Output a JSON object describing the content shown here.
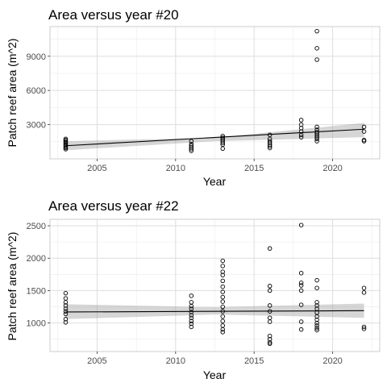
{
  "chart_data": [
    {
      "type": "scatter",
      "title": "Area versus year #20",
      "xlabel": "Year",
      "ylabel": "Patch reef area (m^2)",
      "xlim": [
        2002.0,
        2023.0
      ],
      "ylim": [
        0,
        11600
      ],
      "xticks": [
        2005,
        2010,
        2015,
        2020
      ],
      "yticks": [
        3000,
        6000,
        9000
      ],
      "grid": true,
      "legend": "none",
      "points": [
        {
          "x": 2003,
          "y": 1750
        },
        {
          "x": 2003,
          "y": 1650
        },
        {
          "x": 2003,
          "y": 1550
        },
        {
          "x": 2003,
          "y": 1450
        },
        {
          "x": 2003,
          "y": 1350
        },
        {
          "x": 2003,
          "y": 1250
        },
        {
          "x": 2003,
          "y": 1150
        },
        {
          "x": 2003,
          "y": 1050
        },
        {
          "x": 2003,
          "y": 950
        },
        {
          "x": 2003,
          "y": 850
        },
        {
          "x": 2011,
          "y": 1550
        },
        {
          "x": 2011,
          "y": 1300
        },
        {
          "x": 2011,
          "y": 1150
        },
        {
          "x": 2011,
          "y": 1000
        },
        {
          "x": 2011,
          "y": 850
        },
        {
          "x": 2011,
          "y": 700
        },
        {
          "x": 2013,
          "y": 2000
        },
        {
          "x": 2013,
          "y": 1850
        },
        {
          "x": 2013,
          "y": 1700
        },
        {
          "x": 2013,
          "y": 1550
        },
        {
          "x": 2013,
          "y": 1400
        },
        {
          "x": 2013,
          "y": 1250
        },
        {
          "x": 2013,
          "y": 900
        },
        {
          "x": 2016,
          "y": 2100
        },
        {
          "x": 2016,
          "y": 1750
        },
        {
          "x": 2016,
          "y": 1550
        },
        {
          "x": 2016,
          "y": 1400
        },
        {
          "x": 2016,
          "y": 1250
        },
        {
          "x": 2016,
          "y": 1100
        },
        {
          "x": 2016,
          "y": 950
        },
        {
          "x": 2018,
          "y": 3400
        },
        {
          "x": 2018,
          "y": 3000
        },
        {
          "x": 2018,
          "y": 2700
        },
        {
          "x": 2018,
          "y": 2400
        },
        {
          "x": 2018,
          "y": 2100
        },
        {
          "x": 2018,
          "y": 1900
        },
        {
          "x": 2019,
          "y": 11200
        },
        {
          "x": 2019,
          "y": 9700
        },
        {
          "x": 2019,
          "y": 8700
        },
        {
          "x": 2019,
          "y": 2800
        },
        {
          "x": 2019,
          "y": 2550
        },
        {
          "x": 2019,
          "y": 2350
        },
        {
          "x": 2019,
          "y": 2200
        },
        {
          "x": 2019,
          "y": 2050
        },
        {
          "x": 2019,
          "y": 1900
        },
        {
          "x": 2019,
          "y": 1750
        },
        {
          "x": 2019,
          "y": 1550
        },
        {
          "x": 2022,
          "y": 2800
        },
        {
          "x": 2022,
          "y": 2400
        },
        {
          "x": 2022,
          "y": 1650
        },
        {
          "x": 2022,
          "y": 1550
        }
      ],
      "trend": {
        "x": [
          2003,
          2022
        ],
        "y": [
          1150,
          2600
        ]
      },
      "confidence_band": {
        "x": [
          2003,
          2012.5,
          2022
        ],
        "lower": [
          750,
          1550,
          1900
        ],
        "upper": [
          1550,
          1850,
          3150
        ]
      }
    },
    {
      "type": "scatter",
      "title": "Area versus year #22",
      "xlabel": "Year",
      "ylabel": "Patch reef area (m^2)",
      "xlim": [
        2002.0,
        2023.0
      ],
      "ylim": [
        560,
        2600
      ],
      "xticks": [
        2005,
        2010,
        2015,
        2020
      ],
      "yticks": [
        1000,
        1500,
        2000,
        2500
      ],
      "grid": true,
      "legend": "none",
      "points": [
        {
          "x": 2003,
          "y": 1460
        },
        {
          "x": 2003,
          "y": 1380
        },
        {
          "x": 2003,
          "y": 1320
        },
        {
          "x": 2003,
          "y": 1270
        },
        {
          "x": 2003,
          "y": 1220
        },
        {
          "x": 2003,
          "y": 1180
        },
        {
          "x": 2003,
          "y": 1140
        },
        {
          "x": 2003,
          "y": 1060
        },
        {
          "x": 2003,
          "y": 1010
        },
        {
          "x": 2011,
          "y": 1420
        },
        {
          "x": 2011,
          "y": 1320
        },
        {
          "x": 2011,
          "y": 1260
        },
        {
          "x": 2011,
          "y": 1220
        },
        {
          "x": 2011,
          "y": 1170
        },
        {
          "x": 2011,
          "y": 1120
        },
        {
          "x": 2011,
          "y": 1080
        },
        {
          "x": 2011,
          "y": 1030
        },
        {
          "x": 2011,
          "y": 990
        },
        {
          "x": 2011,
          "y": 940
        },
        {
          "x": 2013,
          "y": 1960
        },
        {
          "x": 2013,
          "y": 1880
        },
        {
          "x": 2013,
          "y": 1790
        },
        {
          "x": 2013,
          "y": 1740
        },
        {
          "x": 2013,
          "y": 1650
        },
        {
          "x": 2013,
          "y": 1560
        },
        {
          "x": 2013,
          "y": 1480
        },
        {
          "x": 2013,
          "y": 1400
        },
        {
          "x": 2013,
          "y": 1330
        },
        {
          "x": 2013,
          "y": 1250
        },
        {
          "x": 2013,
          "y": 1180
        },
        {
          "x": 2013,
          "y": 1100
        },
        {
          "x": 2013,
          "y": 1030
        },
        {
          "x": 2013,
          "y": 960
        },
        {
          "x": 2013,
          "y": 900
        },
        {
          "x": 2013,
          "y": 860
        },
        {
          "x": 2016,
          "y": 2150
        },
        {
          "x": 2016,
          "y": 1570
        },
        {
          "x": 2016,
          "y": 1500
        },
        {
          "x": 2016,
          "y": 1270
        },
        {
          "x": 2016,
          "y": 1180
        },
        {
          "x": 2016,
          "y": 1080
        },
        {
          "x": 2016,
          "y": 1020
        },
        {
          "x": 2016,
          "y": 800
        },
        {
          "x": 2016,
          "y": 750
        },
        {
          "x": 2016,
          "y": 700
        },
        {
          "x": 2016,
          "y": 680
        },
        {
          "x": 2018,
          "y": 2510
        },
        {
          "x": 2018,
          "y": 1770
        },
        {
          "x": 2018,
          "y": 1620
        },
        {
          "x": 2018,
          "y": 1580
        },
        {
          "x": 2018,
          "y": 1500
        },
        {
          "x": 2018,
          "y": 1280
        },
        {
          "x": 2018,
          "y": 1020
        },
        {
          "x": 2018,
          "y": 900
        },
        {
          "x": 2019,
          "y": 1660
        },
        {
          "x": 2019,
          "y": 1540
        },
        {
          "x": 2019,
          "y": 1320
        },
        {
          "x": 2019,
          "y": 1270
        },
        {
          "x": 2019,
          "y": 1220
        },
        {
          "x": 2019,
          "y": 1160
        },
        {
          "x": 2019,
          "y": 1100
        },
        {
          "x": 2019,
          "y": 1050
        },
        {
          "x": 2019,
          "y": 1000
        },
        {
          "x": 2019,
          "y": 960
        },
        {
          "x": 2019,
          "y": 920
        },
        {
          "x": 2019,
          "y": 890
        },
        {
          "x": 2022,
          "y": 1540
        },
        {
          "x": 2022,
          "y": 1470
        },
        {
          "x": 2022,
          "y": 940
        },
        {
          "x": 2022,
          "y": 910
        }
      ],
      "trend": {
        "x": [
          2003,
          2022
        ],
        "y": [
          1170,
          1190
        ]
      },
      "confidence_band": {
        "x": [
          2003,
          2012.5,
          2022
        ],
        "lower": [
          1060,
          1130,
          1080
        ],
        "upper": [
          1290,
          1245,
          1300
        ]
      }
    }
  ]
}
